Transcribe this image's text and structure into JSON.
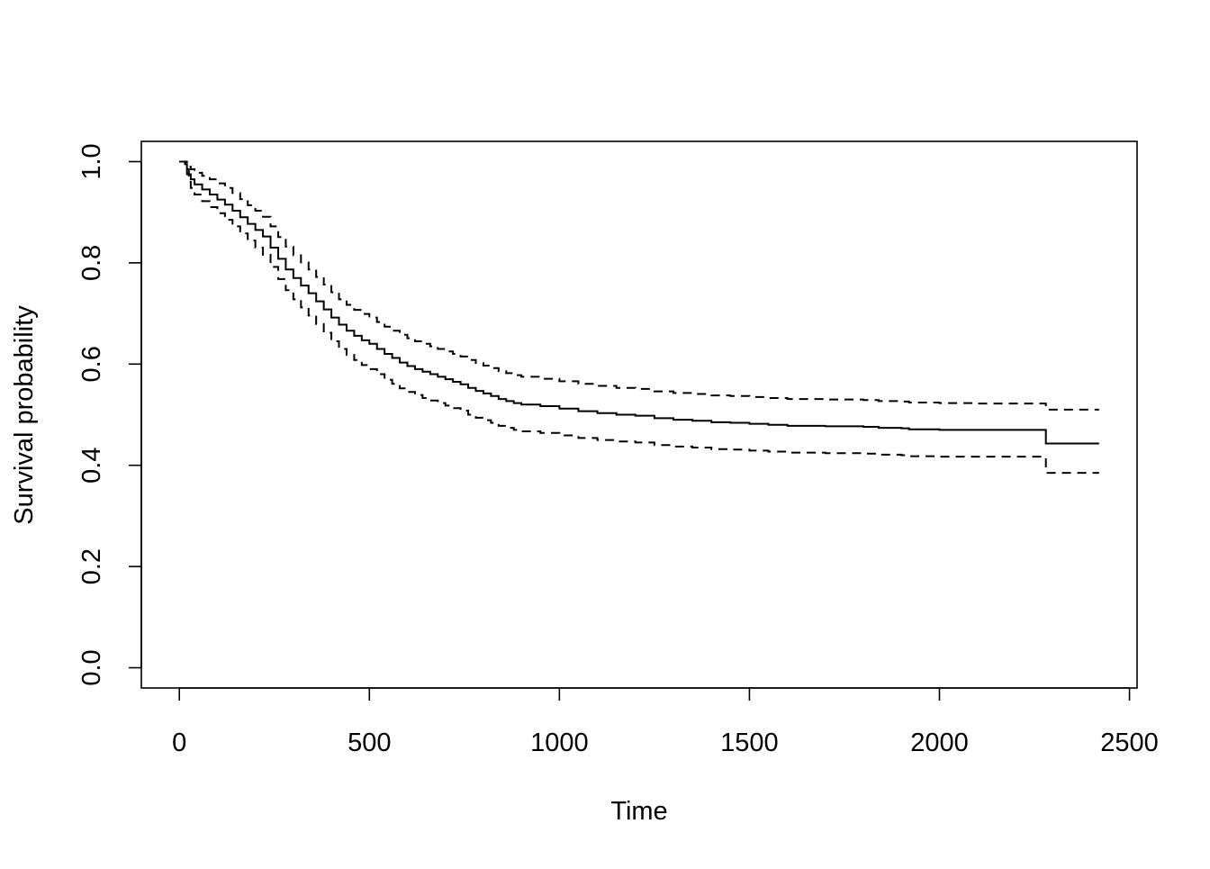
{
  "chart_data": {
    "type": "line",
    "title": "",
    "xlabel": "Time",
    "ylabel": "Survival probability",
    "xlim": [
      -100,
      2520
    ],
    "ylim": [
      -0.04,
      1.04
    ],
    "xticks": [
      0,
      500,
      1000,
      1500,
      2000,
      2500
    ],
    "xtick_labels": [
      "0",
      "500",
      "1000",
      "1500",
      "2000",
      "2500"
    ],
    "yticks": [
      0.0,
      0.2,
      0.4,
      0.6,
      0.8,
      1.0
    ],
    "ytick_labels": [
      "0.0",
      "0.2",
      "0.4",
      "0.6",
      "0.8",
      "1.0"
    ],
    "grid": false,
    "legend": "none",
    "step": true,
    "series": [
      {
        "role": "estimate",
        "style": "solid",
        "color": "#000000",
        "x": [
          0,
          15,
          20,
          25,
          30,
          40,
          60,
          80,
          100,
          120,
          140,
          160,
          180,
          200,
          220,
          240,
          260,
          280,
          300,
          320,
          340,
          360,
          380,
          400,
          420,
          440,
          460,
          480,
          500,
          520,
          540,
          560,
          580,
          600,
          620,
          640,
          660,
          680,
          700,
          720,
          740,
          760,
          780,
          800,
          820,
          840,
          860,
          880,
          900,
          950,
          1000,
          1050,
          1100,
          1150,
          1200,
          1250,
          1300,
          1350,
          1400,
          1450,
          1500,
          1550,
          1600,
          1700,
          1800,
          1840,
          1900,
          1920,
          2000,
          2100,
          2200,
          2280,
          2420
        ],
        "y": [
          1.0,
          0.995,
          0.985,
          0.975,
          0.965,
          0.955,
          0.945,
          0.935,
          0.925,
          0.915,
          0.903,
          0.89,
          0.877,
          0.865,
          0.852,
          0.83,
          0.808,
          0.787,
          0.77,
          0.755,
          0.74,
          0.724,
          0.708,
          0.692,
          0.678,
          0.666,
          0.656,
          0.647,
          0.64,
          0.63,
          0.62,
          0.612,
          0.603,
          0.596,
          0.59,
          0.585,
          0.58,
          0.575,
          0.57,
          0.565,
          0.56,
          0.553,
          0.547,
          0.542,
          0.537,
          0.531,
          0.527,
          0.523,
          0.52,
          0.517,
          0.512,
          0.507,
          0.503,
          0.5,
          0.498,
          0.493,
          0.49,
          0.488,
          0.485,
          0.484,
          0.482,
          0.48,
          0.478,
          0.477,
          0.476,
          0.474,
          0.473,
          0.471,
          0.47,
          0.47,
          0.47,
          0.443,
          0.443
        ]
      },
      {
        "role": "upper-ci",
        "style": "dashed",
        "color": "#000000",
        "x": [
          0,
          15,
          20,
          25,
          30,
          40,
          60,
          80,
          100,
          120,
          140,
          160,
          180,
          200,
          220,
          240,
          260,
          280,
          300,
          320,
          340,
          360,
          380,
          400,
          420,
          440,
          460,
          480,
          500,
          520,
          540,
          560,
          580,
          600,
          620,
          640,
          660,
          680,
          700,
          720,
          740,
          760,
          780,
          800,
          820,
          840,
          860,
          880,
          900,
          950,
          1000,
          1050,
          1100,
          1150,
          1200,
          1250,
          1300,
          1350,
          1400,
          1450,
          1500,
          1550,
          1600,
          1700,
          1800,
          1840,
          1900,
          1920,
          2000,
          2100,
          2200,
          2280,
          2420
        ],
        "y": [
          1.0,
          1.0,
          0.997,
          0.99,
          0.985,
          0.978,
          0.972,
          0.965,
          0.957,
          0.948,
          0.938,
          0.926,
          0.914,
          0.903,
          0.891,
          0.872,
          0.851,
          0.832,
          0.815,
          0.801,
          0.787,
          0.772,
          0.757,
          0.742,
          0.728,
          0.717,
          0.707,
          0.699,
          0.692,
          0.683,
          0.674,
          0.666,
          0.658,
          0.651,
          0.645,
          0.64,
          0.635,
          0.63,
          0.625,
          0.62,
          0.615,
          0.608,
          0.602,
          0.597,
          0.592,
          0.586,
          0.582,
          0.578,
          0.575,
          0.571,
          0.566,
          0.561,
          0.557,
          0.553,
          0.551,
          0.546,
          0.543,
          0.541,
          0.538,
          0.537,
          0.535,
          0.533,
          0.531,
          0.53,
          0.529,
          0.527,
          0.526,
          0.524,
          0.523,
          0.522,
          0.522,
          0.51,
          0.51
        ]
      },
      {
        "role": "lower-ci",
        "style": "dashed",
        "color": "#000000",
        "x": [
          0,
          15,
          20,
          25,
          30,
          40,
          60,
          80,
          100,
          120,
          140,
          160,
          180,
          200,
          220,
          240,
          260,
          280,
          300,
          320,
          340,
          360,
          380,
          400,
          420,
          440,
          460,
          480,
          500,
          520,
          540,
          560,
          580,
          600,
          620,
          640,
          660,
          680,
          700,
          720,
          740,
          760,
          780,
          800,
          820,
          840,
          860,
          880,
          900,
          950,
          1000,
          1050,
          1100,
          1150,
          1200,
          1250,
          1300,
          1350,
          1400,
          1450,
          1500,
          1550,
          1600,
          1700,
          1800,
          1840,
          1900,
          1920,
          2000,
          2100,
          2200,
          2280,
          2420
        ],
        "y": [
          1.0,
          0.99,
          0.975,
          0.96,
          0.948,
          0.935,
          0.922,
          0.91,
          0.898,
          0.885,
          0.872,
          0.858,
          0.844,
          0.83,
          0.816,
          0.792,
          0.768,
          0.746,
          0.728,
          0.712,
          0.696,
          0.679,
          0.662,
          0.645,
          0.63,
          0.618,
          0.608,
          0.598,
          0.59,
          0.58,
          0.569,
          0.561,
          0.552,
          0.545,
          0.539,
          0.533,
          0.528,
          0.523,
          0.518,
          0.513,
          0.508,
          0.5,
          0.494,
          0.489,
          0.484,
          0.478,
          0.474,
          0.47,
          0.467,
          0.464,
          0.459,
          0.454,
          0.45,
          0.447,
          0.445,
          0.44,
          0.437,
          0.435,
          0.432,
          0.431,
          0.429,
          0.427,
          0.425,
          0.424,
          0.423,
          0.421,
          0.42,
          0.418,
          0.417,
          0.417,
          0.417,
          0.385,
          0.385
        ]
      }
    ]
  }
}
